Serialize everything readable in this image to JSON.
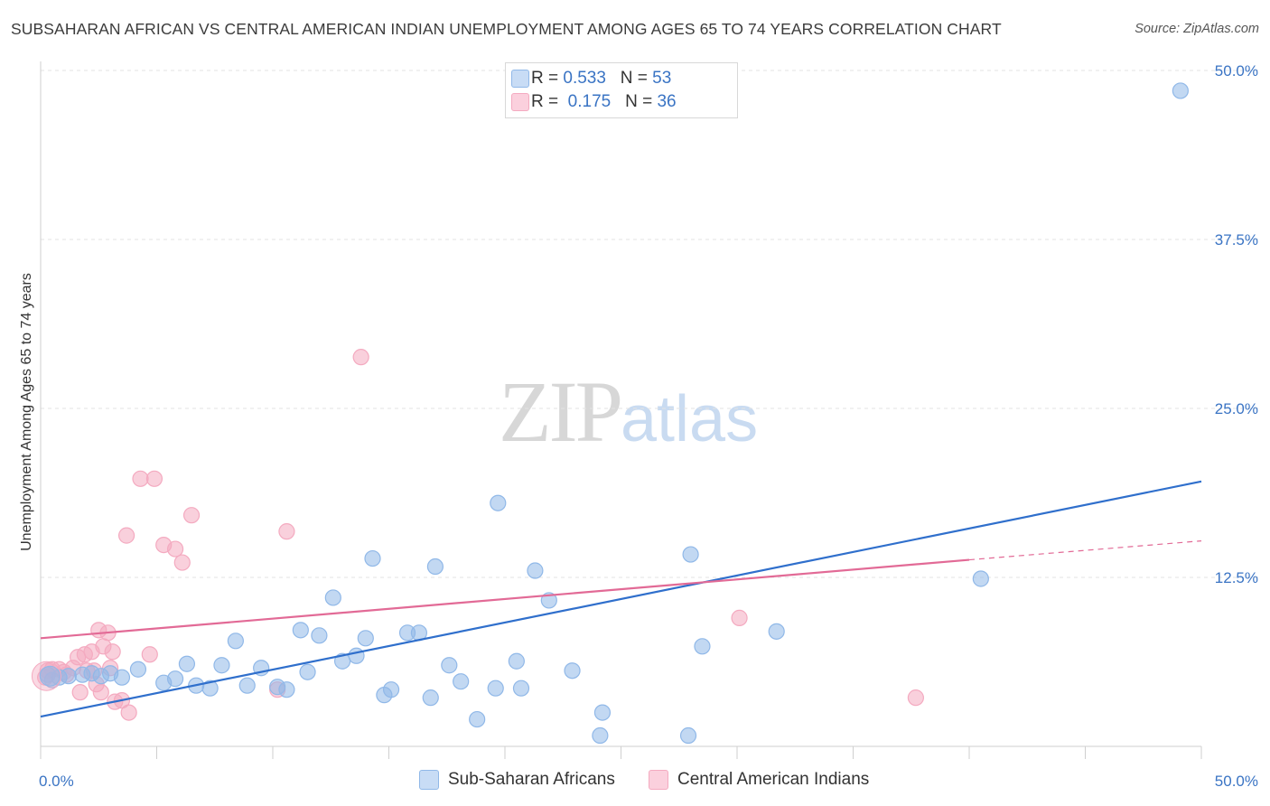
{
  "header": {
    "title": "SUBSAHARAN AFRICAN VS CENTRAL AMERICAN INDIAN UNEMPLOYMENT AMONG AGES 65 TO 74 YEARS CORRELATION CHART",
    "source": "Source: ZipAtlas.com"
  },
  "watermark": {
    "zip": "ZIP",
    "atlas": "atlas"
  },
  "legend": {
    "r_label": "R =",
    "n_label": "N =",
    "series": [
      {
        "r": "0.533",
        "n": "53"
      },
      {
        "r": "0.175",
        "n": "36"
      }
    ]
  },
  "chart_data": {
    "type": "scatter",
    "title": "SUBSAHARAN AFRICAN VS CENTRAL AMERICAN INDIAN UNEMPLOYMENT AMONG AGES 65 TO 74 YEARS CORRELATION CHART",
    "ylabel": "Unemployment Among Ages 65 to 74 years",
    "xlim": [
      0,
      50
    ],
    "ylim": [
      0,
      50
    ],
    "x_tick_labels": [
      "0.0%",
      "50.0%"
    ],
    "y_tick_labels": [
      "12.5%",
      "25.0%",
      "37.5%",
      "50.0%"
    ],
    "y_ticks": [
      12.5,
      25.0,
      37.5,
      50.0
    ],
    "grid": true,
    "series": [
      {
        "name": "Sub-Saharan Africans",
        "color": "#90b8e8",
        "line_color": "#2f6fcc",
        "trend": {
          "x": [
            0,
            50
          ],
          "y": [
            2.2,
            19.6
          ]
        },
        "points": [
          [
            0.3,
            5.3
          ],
          [
            0.5,
            4.9
          ],
          [
            0.8,
            5.1
          ],
          [
            1.2,
            5.2
          ],
          [
            1.8,
            5.3
          ],
          [
            2.2,
            5.4
          ],
          [
            2.6,
            5.2
          ],
          [
            3.0,
            5.4
          ],
          [
            3.5,
            5.1
          ],
          [
            4.2,
            5.7
          ],
          [
            5.3,
            4.7
          ],
          [
            5.8,
            5.0
          ],
          [
            6.3,
            6.1
          ],
          [
            6.7,
            4.5
          ],
          [
            7.3,
            4.3
          ],
          [
            7.8,
            6.0
          ],
          [
            8.4,
            7.8
          ],
          [
            8.9,
            4.5
          ],
          [
            9.5,
            5.8
          ],
          [
            10.2,
            4.4
          ],
          [
            10.6,
            4.2
          ],
          [
            11.2,
            8.6
          ],
          [
            11.5,
            5.5
          ],
          [
            12.0,
            8.2
          ],
          [
            12.6,
            11.0
          ],
          [
            13.0,
            6.3
          ],
          [
            13.6,
            6.7
          ],
          [
            14.0,
            8.0
          ],
          [
            14.3,
            13.9
          ],
          [
            14.8,
            3.8
          ],
          [
            15.1,
            4.2
          ],
          [
            15.8,
            8.4
          ],
          [
            16.3,
            8.4
          ],
          [
            16.8,
            3.6
          ],
          [
            17.0,
            13.3
          ],
          [
            17.6,
            6.0
          ],
          [
            18.1,
            4.8
          ],
          [
            18.8,
            2.0
          ],
          [
            19.6,
            4.3
          ],
          [
            19.7,
            18.0
          ],
          [
            20.5,
            6.3
          ],
          [
            20.7,
            4.3
          ],
          [
            21.3,
            13.0
          ],
          [
            21.9,
            10.8
          ],
          [
            22.9,
            5.6
          ],
          [
            24.1,
            0.8
          ],
          [
            24.2,
            2.5
          ],
          [
            28.0,
            14.2
          ],
          [
            28.5,
            7.4
          ],
          [
            31.7,
            8.5
          ],
          [
            40.5,
            12.4
          ],
          [
            49.1,
            48.5
          ],
          [
            27.9,
            0.8
          ]
        ]
      },
      {
        "name": "Central American Indians",
        "color": "#f4aac0",
        "line_color": "#e26a96",
        "trend": {
          "x": [
            0,
            40
          ],
          "y": [
            8.0,
            13.8
          ]
        },
        "trend_dashed": {
          "x": [
            40,
            50
          ],
          "y": [
            13.8,
            15.2
          ]
        },
        "points": [
          [
            0.2,
            5.1
          ],
          [
            0.3,
            5.6
          ],
          [
            0.5,
            5.7
          ],
          [
            0.8,
            5.7
          ],
          [
            1.0,
            5.5
          ],
          [
            1.1,
            5.3
          ],
          [
            1.4,
            5.8
          ],
          [
            1.6,
            6.6
          ],
          [
            1.9,
            6.8
          ],
          [
            2.0,
            5.6
          ],
          [
            2.2,
            7.0
          ],
          [
            2.3,
            5.6
          ],
          [
            2.4,
            4.6
          ],
          [
            2.5,
            8.6
          ],
          [
            2.6,
            4.0
          ],
          [
            2.7,
            7.4
          ],
          [
            2.9,
            8.4
          ],
          [
            3.0,
            5.8
          ],
          [
            3.1,
            7.0
          ],
          [
            3.2,
            3.3
          ],
          [
            3.5,
            3.4
          ],
          [
            3.8,
            2.5
          ],
          [
            3.7,
            15.6
          ],
          [
            4.3,
            19.8
          ],
          [
            4.7,
            6.8
          ],
          [
            4.9,
            19.8
          ],
          [
            5.3,
            14.9
          ],
          [
            5.8,
            14.6
          ],
          [
            6.1,
            13.6
          ],
          [
            6.5,
            17.1
          ],
          [
            10.2,
            4.2
          ],
          [
            10.6,
            15.9
          ],
          [
            13.8,
            28.8
          ],
          [
            30.1,
            9.5
          ],
          [
            37.7,
            3.6
          ],
          [
            1.7,
            4.0
          ]
        ]
      }
    ]
  }
}
